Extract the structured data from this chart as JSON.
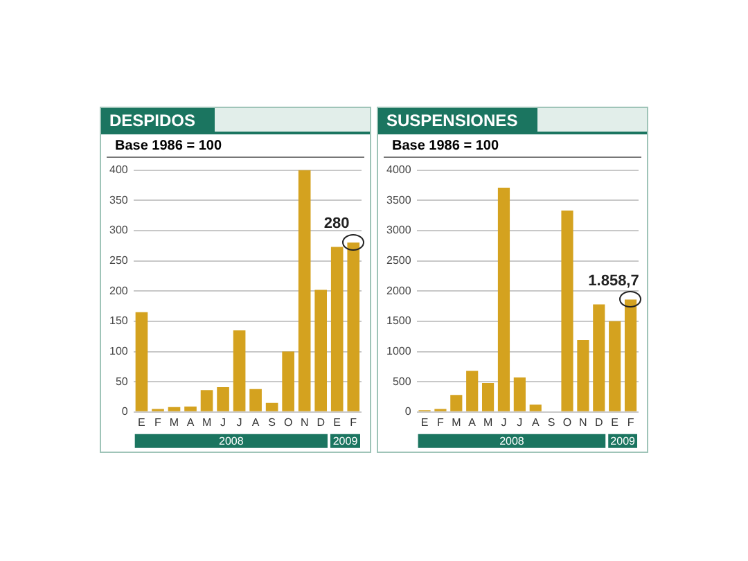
{
  "chart_data": [
    {
      "type": "bar",
      "title": "DESPIDOS",
      "subtitle": "Base 1986 = 100",
      "categories": [
        "E",
        "F",
        "M",
        "A",
        "M",
        "J",
        "J",
        "A",
        "S",
        "O",
        "N",
        "D",
        "E",
        "F"
      ],
      "values": [
        165,
        5,
        8,
        9,
        36,
        41,
        135,
        38,
        15,
        100,
        400,
        202,
        273,
        280
      ],
      "value_labels": [
        null,
        null,
        null,
        null,
        null,
        null,
        null,
        null,
        null,
        null,
        null,
        null,
        null,
        "280"
      ],
      "color": "#d4a21f",
      "ylim": [
        0,
        400
      ],
      "yticks": [
        0,
        50,
        100,
        150,
        200,
        250,
        300,
        350,
        400
      ],
      "grid": "y",
      "legend": false,
      "annotations": [
        "2008",
        "2009"
      ]
    },
    {
      "type": "bar",
      "title": "SUSPENSIONES",
      "subtitle": "Base 1986 = 100",
      "categories": [
        "E",
        "F",
        "M",
        "A",
        "M",
        "J",
        "J",
        "A",
        "S",
        "O",
        "N",
        "D",
        "E",
        "F"
      ],
      "values": [
        30,
        50,
        280,
        680,
        480,
        3710,
        570,
        120,
        0,
        3330,
        1190,
        1780,
        1500,
        1858.7
      ],
      "value_labels": [
        null,
        null,
        null,
        null,
        null,
        null,
        null,
        null,
        null,
        null,
        null,
        null,
        null,
        "1.858,7"
      ],
      "color": "#d4a21f",
      "ylim": [
        0,
        4000
      ],
      "yticks": [
        0,
        500,
        1000,
        1500,
        2000,
        2500,
        3000,
        3500,
        4000
      ],
      "grid": "y",
      "legend": false,
      "annotations": [
        "2008",
        "2009"
      ]
    }
  ]
}
